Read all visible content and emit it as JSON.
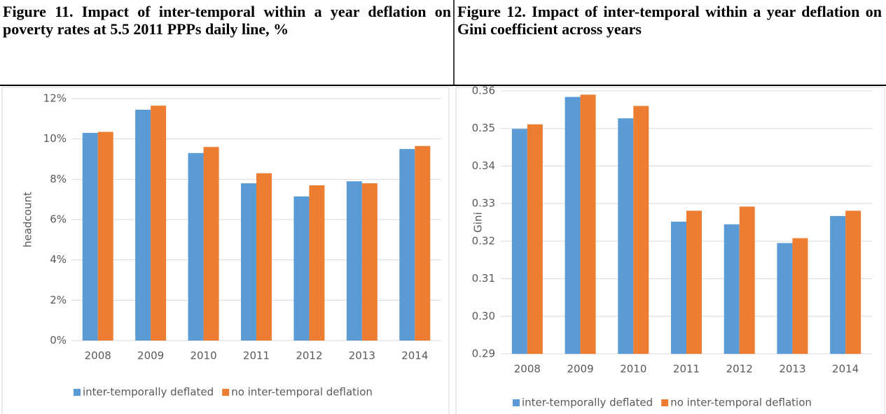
{
  "chart_data": [
    {
      "type": "bar",
      "title": "Figure 11. Impact of inter-temporal within a year deflation on poverty rates at 5.5 2011 PPPs daily line, %",
      "y_label": "headcount",
      "categories": [
        "2008",
        "2009",
        "2010",
        "2011",
        "2012",
        "2013",
        "2014"
      ],
      "series": [
        {
          "name": "inter-temporally deflated",
          "color": "#5b9bd5",
          "values": [
            10.3,
            11.45,
            9.3,
            7.8,
            7.15,
            7.9,
            9.5
          ]
        },
        {
          "name": "no inter-temporal deflation",
          "color": "#ed7d31",
          "values": [
            10.35,
            11.65,
            9.6,
            8.3,
            7.7,
            7.8,
            9.65
          ]
        }
      ],
      "ylim": [
        0,
        12
      ],
      "yticks": [
        {
          "value": 0,
          "label": "0%"
        },
        {
          "value": 2,
          "label": "2%"
        },
        {
          "value": 4,
          "label": "4%"
        },
        {
          "value": 6,
          "label": "6%"
        },
        {
          "value": 8,
          "label": "8%"
        },
        {
          "value": 10,
          "label": "10%"
        },
        {
          "value": 12,
          "label": "12%"
        }
      ],
      "grid": true,
      "legend": "bottom"
    },
    {
      "type": "bar",
      "title": "Figure 12. Impact of inter-temporal within a year deflation on Gini coefficient across years",
      "y_label": "Gini",
      "categories": [
        "2008",
        "2009",
        "2010",
        "2011",
        "2012",
        "2013",
        "2014"
      ],
      "series": [
        {
          "name": "inter-temporally deflated",
          "color": "#5b9bd5",
          "values": [
            0.3499,
            0.3584,
            0.3527,
            0.3252,
            0.3245,
            0.3195,
            0.3267
          ]
        },
        {
          "name": "no inter-temporal deflation",
          "color": "#ed7d31",
          "values": [
            0.3511,
            0.359,
            0.356,
            0.3281,
            0.3292,
            0.3208,
            0.3281
          ]
        }
      ],
      "ylim": [
        0.29,
        0.36
      ],
      "yticks": [
        0.29,
        {
          "value": 0.3,
          "label": "0.30"
        },
        0.31,
        0.32,
        0.33,
        0.34,
        0.35,
        0.36
      ],
      "grid": true,
      "legend": "bottom"
    }
  ]
}
